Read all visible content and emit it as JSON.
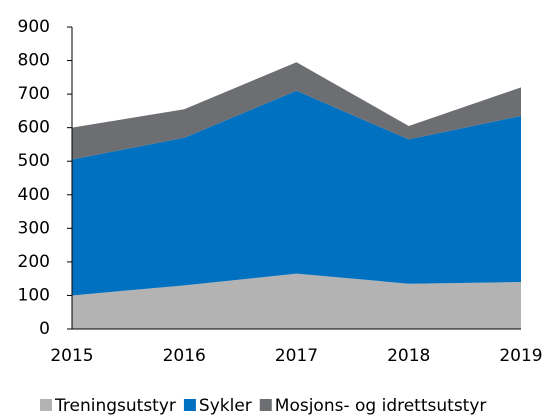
{
  "chart_data": {
    "type": "stacked_area",
    "categories": [
      "2015",
      "2016",
      "2017",
      "2018",
      "2019"
    ],
    "series": [
      {
        "name": "Treningsutstyr",
        "color": "#b3b3b3",
        "values": [
          100,
          130,
          165,
          135,
          140
        ]
      },
      {
        "name": "Sykler",
        "color": "#0070c0",
        "values": [
          405,
          440,
          545,
          430,
          495
        ]
      },
      {
        "name": "Mosjons- og idrettsutstyr",
        "color": "#6d6e71",
        "values": [
          95,
          85,
          85,
          40,
          85
        ]
      }
    ],
    "ylim": [
      0,
      900
    ],
    "yticks": [
      0,
      100,
      200,
      300,
      400,
      500,
      600,
      700,
      800,
      900
    ],
    "grid": false,
    "legend": "bottom"
  }
}
